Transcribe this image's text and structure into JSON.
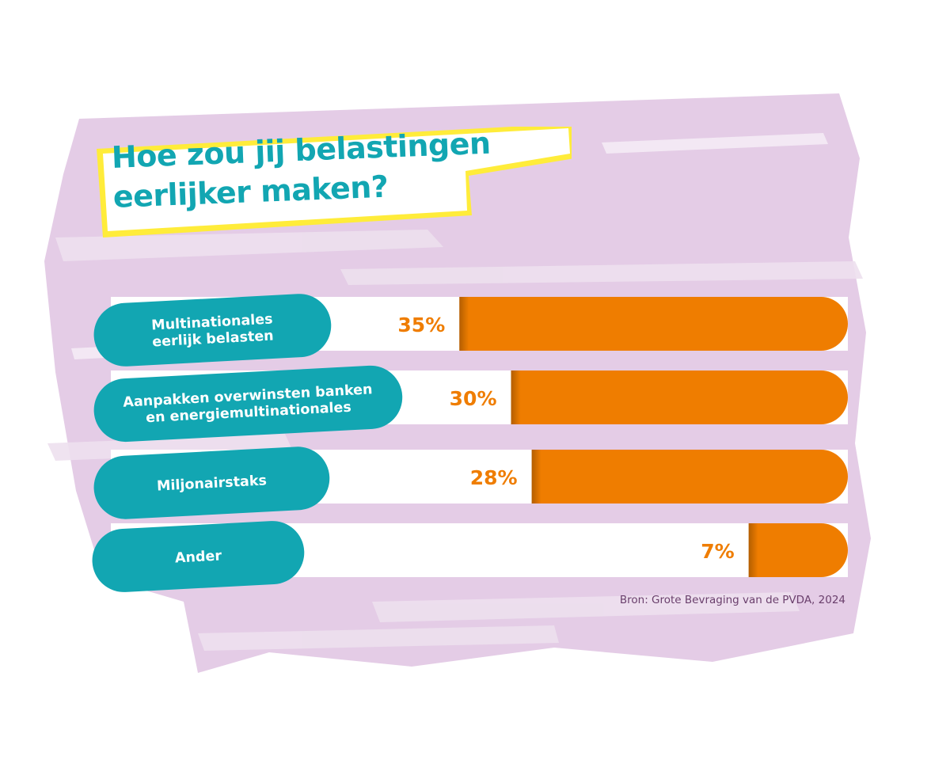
{
  "title": {
    "line1": "Hoe zou jij belastingen",
    "line2": "eerlijker maken?"
  },
  "source": "Bron: Grote Bevraging van de PVDA, 2024",
  "colors": {
    "teal": "#12a6b2",
    "orange": "#ef7d00",
    "brush": "#e4cce6",
    "highlight": "#ffec3a",
    "source_text": "#6a3f6c"
  },
  "chart_data": {
    "type": "bar",
    "orientation": "horizontal",
    "title": "Hoe zou jij belastingen eerlijker maken?",
    "unit": "%",
    "xlim": [
      0,
      100
    ],
    "categories": [
      [
        "Multinationales",
        "eerlijk belasten"
      ],
      [
        "Aanpakken overwinsten banken",
        "en energiemultinationales"
      ],
      [
        "Miljonairstaks"
      ],
      [
        "Ander"
      ]
    ],
    "values": [
      35,
      30,
      28,
      7
    ],
    "value_labels": [
      "35%",
      "30%",
      "28%",
      "7%"
    ]
  }
}
